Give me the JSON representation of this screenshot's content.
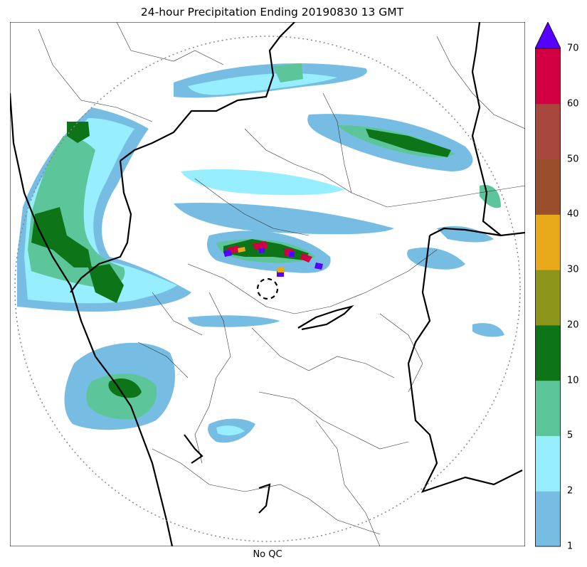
{
  "title": "24-hour Precipitation Ending 20190830 13 GMT",
  "xlabel": "No QC",
  "colorbar": {
    "ticks": [
      "1",
      "2",
      "5",
      "10",
      "20",
      "30",
      "40",
      "50",
      "60",
      "70"
    ],
    "colors": [
      "#77bde3",
      "#96eeff",
      "#5cc59a",
      "#0e7418",
      "#8c9419",
      "#e8aa1a",
      "#9b4e2b",
      "#a7473e",
      "#d20042"
    ],
    "extend_color": "#5500ff"
  },
  "map": {
    "background": "#ffffff",
    "border_color": "#000000",
    "range_ring_color": "#888888",
    "radar_site": "center dashed circle"
  }
}
